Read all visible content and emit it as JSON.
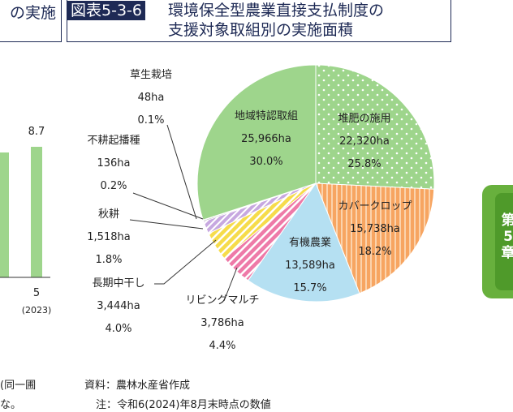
{
  "header": {
    "left_fragment": "の実施",
    "fig_label": "図表5-3-6",
    "title_line1": "環境保全型農業直接支払制度の",
    "title_line2": "支援対象取組別の実施面積"
  },
  "left_chart": {
    "value_label": "8.7",
    "x_label": "5",
    "x_sublabel": "(2023)"
  },
  "chart_data": {
    "type": "pie",
    "unit": "ha",
    "slices": [
      {
        "name": "堆肥の施用",
        "value": 22320,
        "value_label": "22,320ha",
        "pct_label": "25.8%",
        "color": "#9ed58c",
        "pattern": "dots"
      },
      {
        "name": "カバークロップ",
        "value": 15738,
        "value_label": "15,738ha",
        "pct_label": "18.2%",
        "color": "#f7a561",
        "pattern": "vstripes"
      },
      {
        "name": "有機農業",
        "value": 13589,
        "value_label": "13,589ha",
        "pct_label": "15.7%",
        "color": "#b5e0f2",
        "pattern": "none"
      },
      {
        "name": "リビングマルチ",
        "value": 3786,
        "value_label": "3,786ha",
        "pct_label": "4.4%",
        "color": "#ee7aa8",
        "pattern": "dstripes"
      },
      {
        "name": "長期中干し",
        "value": 3444,
        "value_label": "3,444ha",
        "pct_label": "4.0%",
        "color": "#f6dc4b",
        "pattern": "dstripes"
      },
      {
        "name": "秋耕",
        "value": 1518,
        "value_label": "1,518ha",
        "pct_label": "1.8%",
        "color": "#c7a8e0",
        "pattern": "dstripes"
      },
      {
        "name": "不耕起播種",
        "value": 136,
        "value_label": "136ha",
        "pct_label": "0.2%",
        "color": "#777777",
        "pattern": "none"
      },
      {
        "name": "草生栽培",
        "value": 48,
        "value_label": "48ha",
        "pct_label": "0.1%",
        "color": "#333333",
        "pattern": "none"
      },
      {
        "name": "地域特認取組",
        "value": 25966,
        "value_label": "25,966ha",
        "pct_label": "30.0%",
        "color": "#9ed58c",
        "pattern": "none"
      }
    ]
  },
  "footer": {
    "left_line1": "(同一圃",
    "left_line2": "な。",
    "source": "資料：農林水産省作成",
    "note": "注：令和6(2024)年8月末時点の数値"
  },
  "side_tab": {
    "text": "第5章"
  }
}
